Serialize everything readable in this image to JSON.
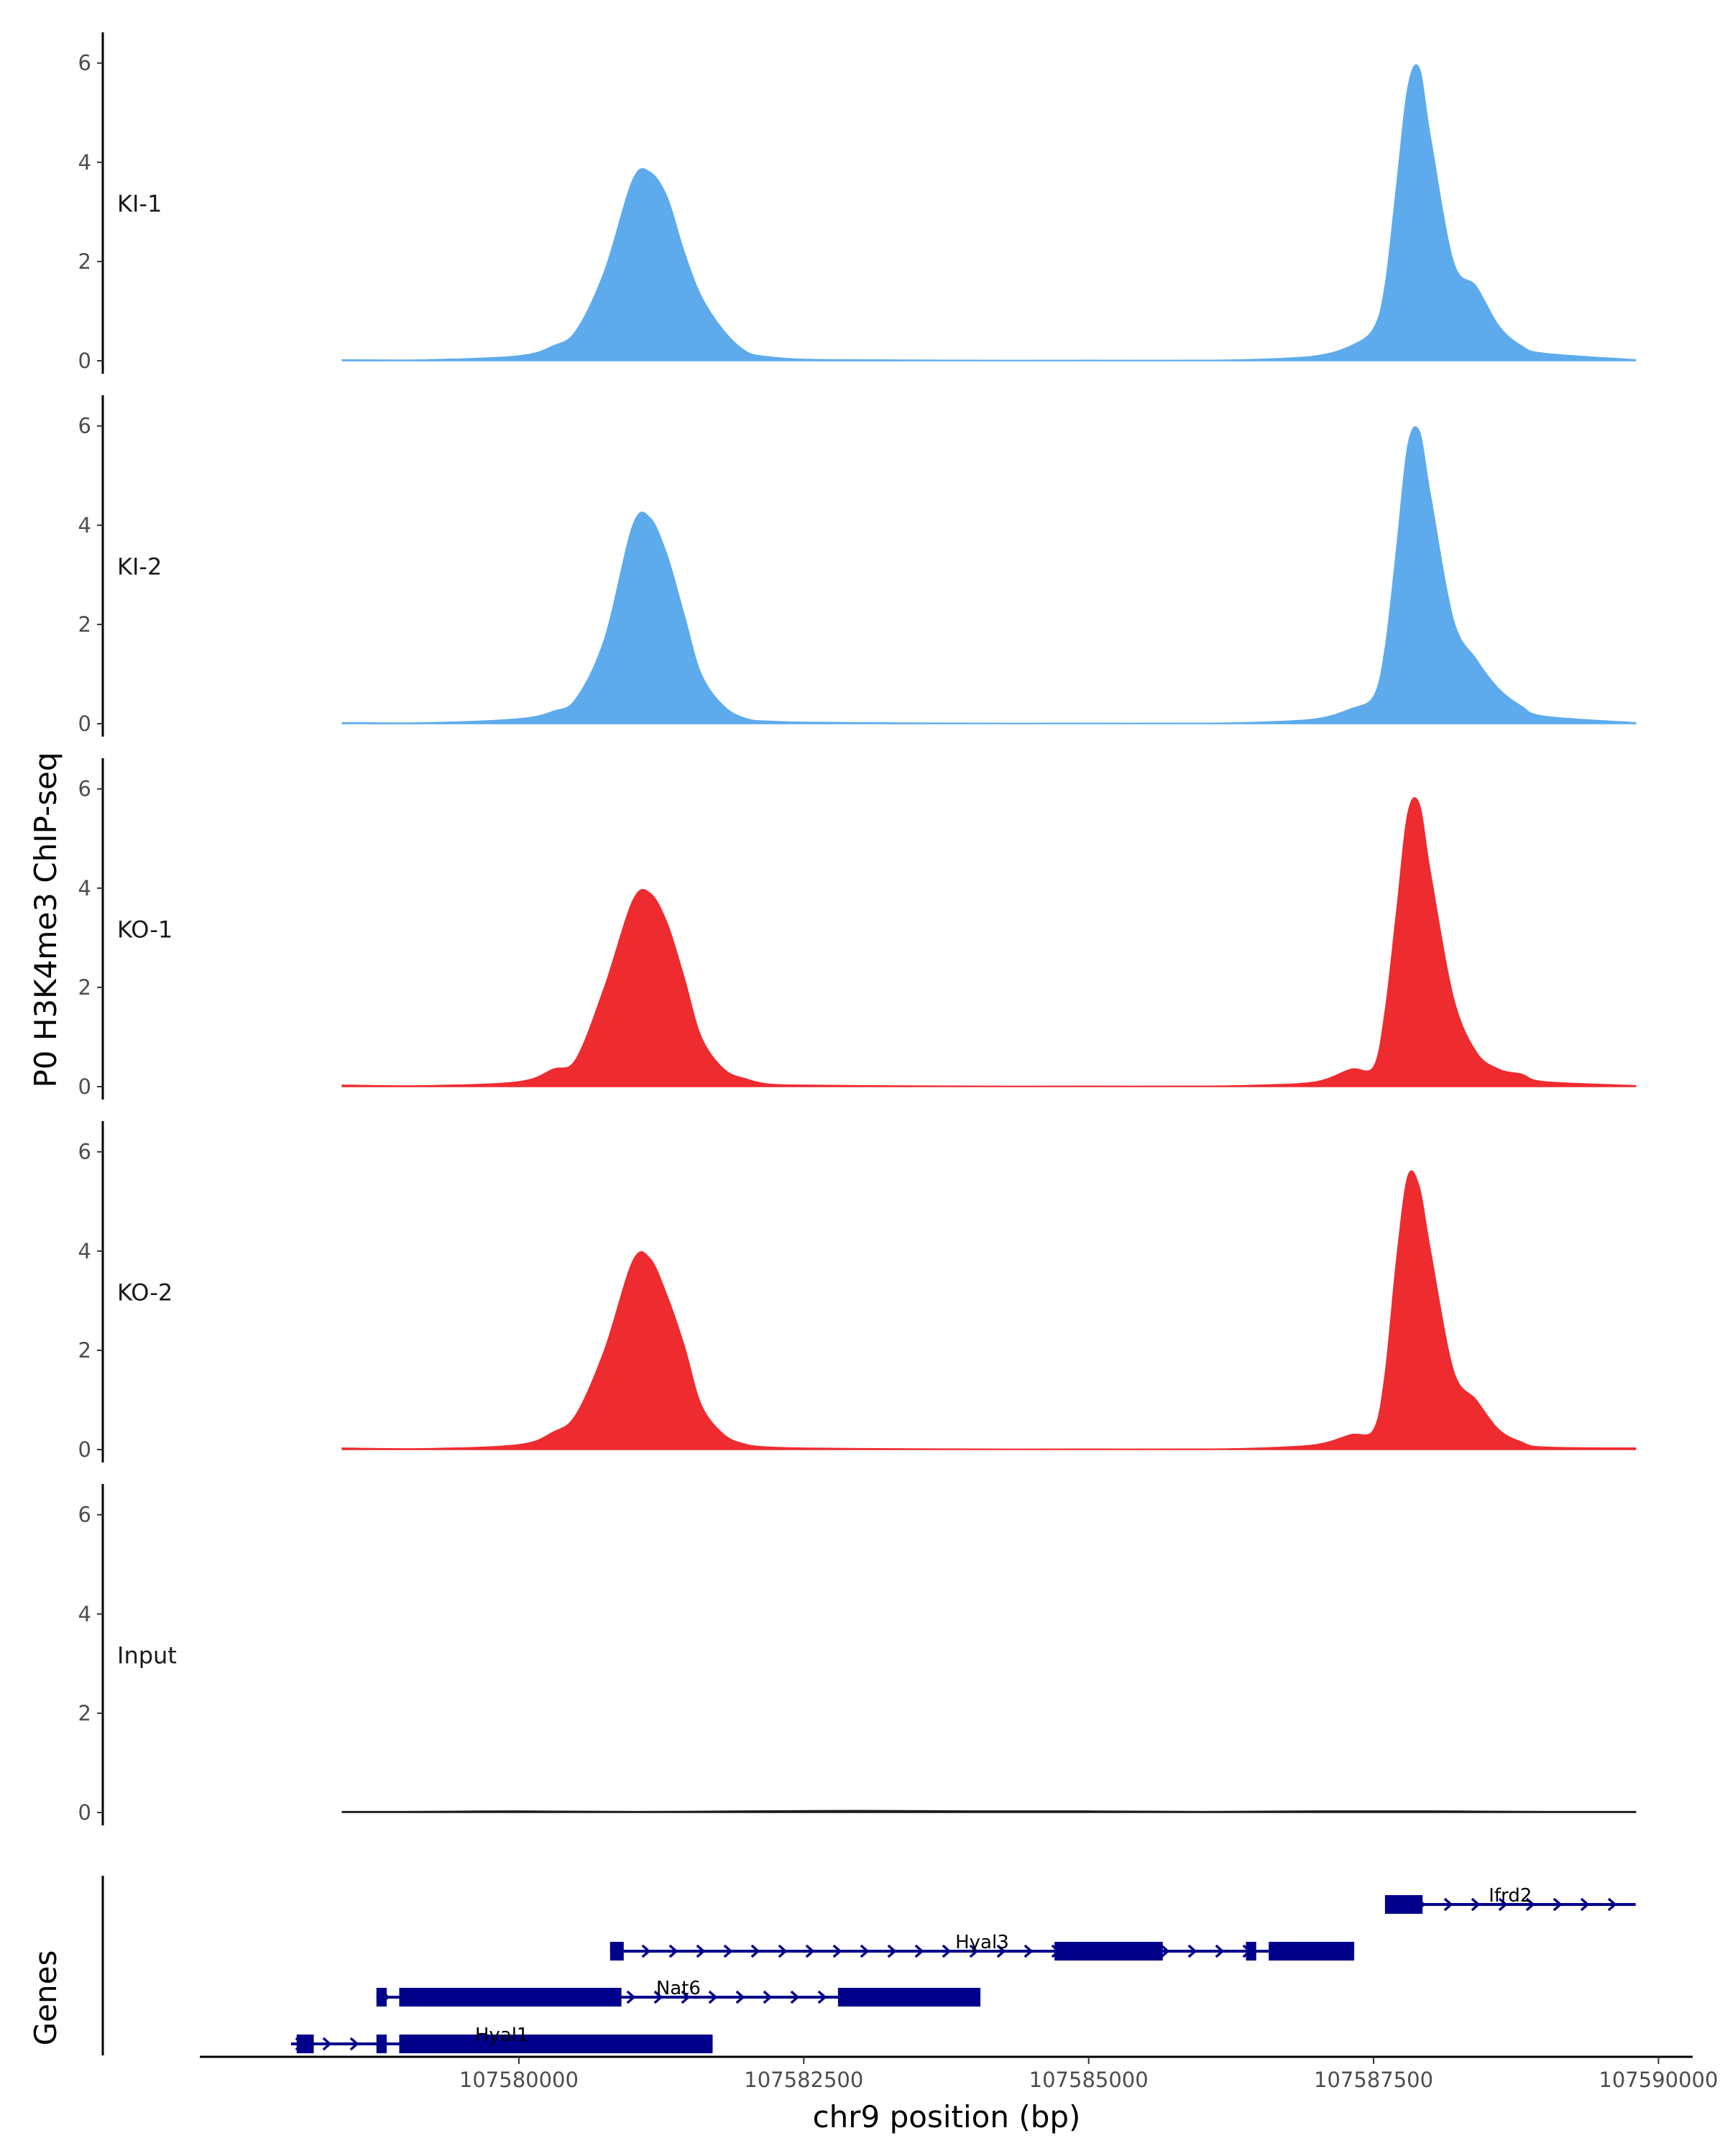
{
  "chart_data": {
    "type": "area",
    "title": "",
    "ylabel": "P0 H3K4me3 ChIP-seq",
    "xlabel": "chr9 position (bp)",
    "genes_label": "Genes",
    "xlim": [
      107577200,
      107590300
    ],
    "region": [
      107578450,
      107589800
    ],
    "ylim": [
      0,
      6.3
    ],
    "yticks": [
      0,
      2,
      4,
      6
    ],
    "xticks": [
      107580000,
      107582500,
      107585000,
      107587500,
      107590000
    ],
    "colors": {
      "KI": "#5dabec",
      "KO": "#ee2b2e",
      "Input": "#1a1a1a",
      "gene": "#00008b",
      "axis": "#000000"
    },
    "series": [
      {
        "name": "KI-1",
        "color": "#5dabec",
        "x": [
          107578450,
          107579200,
          107580000,
          107580300,
          107580500,
          107580750,
          107581000,
          107581150,
          107581300,
          107581450,
          107581600,
          107581800,
          107582000,
          107582200,
          107582500,
          107583000,
          107584000,
          107585000,
          107586000,
          107586500,
          107587000,
          107587300,
          107587500,
          107587600,
          107587700,
          107587800,
          107587900,
          107588000,
          107588200,
          107588400,
          107588600,
          107588800,
          107589000,
          107589800
        ],
        "y": [
          0.02,
          0.02,
          0.1,
          0.3,
          0.6,
          1.8,
          3.65,
          3.8,
          3.3,
          2.2,
          1.3,
          0.6,
          0.18,
          0.08,
          0.03,
          0.02,
          0.01,
          0.01,
          0.01,
          0.03,
          0.1,
          0.3,
          0.65,
          1.5,
          3.5,
          5.5,
          5.9,
          4.5,
          2.0,
          1.5,
          0.7,
          0.3,
          0.15,
          0.02
        ]
      },
      {
        "name": "KI-2",
        "color": "#5dabec",
        "x": [
          107578450,
          107579200,
          107580000,
          107580300,
          107580500,
          107580750,
          107581000,
          107581150,
          107581300,
          107581450,
          107581600,
          107581800,
          107582000,
          107582200,
          107582500,
          107583000,
          107584000,
          107585000,
          107586000,
          107586500,
          107587000,
          107587300,
          107587500,
          107587600,
          107587700,
          107587800,
          107587900,
          107588000,
          107588200,
          107588400,
          107588600,
          107588800,
          107589000,
          107589800
        ],
        "y": [
          0.02,
          0.02,
          0.1,
          0.25,
          0.5,
          1.7,
          4.0,
          4.15,
          3.4,
          2.2,
          1.0,
          0.35,
          0.1,
          0.05,
          0.03,
          0.02,
          0.01,
          0.01,
          0.01,
          0.03,
          0.1,
          0.3,
          0.55,
          1.5,
          3.5,
          5.6,
          5.9,
          4.6,
          2.1,
          1.3,
          0.7,
          0.35,
          0.15,
          0.02
        ]
      },
      {
        "name": "KO-1",
        "color": "#ee2b2e",
        "x": [
          107578450,
          107579200,
          107580000,
          107580300,
          107580500,
          107580750,
          107581000,
          107581150,
          107581300,
          107581450,
          107581600,
          107581800,
          107582000,
          107582200,
          107582500,
          107583000,
          107584000,
          107585000,
          107586000,
          107586500,
          107587000,
          107587300,
          107587500,
          107587600,
          107587700,
          107587800,
          107587900,
          107588000,
          107588200,
          107588400,
          107588600,
          107588800,
          107589000,
          107589800
        ],
        "y": [
          0.03,
          0.02,
          0.1,
          0.35,
          0.55,
          2.0,
          3.75,
          3.9,
          3.3,
          2.2,
          1.0,
          0.35,
          0.15,
          0.05,
          0.03,
          0.02,
          0.01,
          0.01,
          0.01,
          0.03,
          0.1,
          0.35,
          0.4,
          1.5,
          3.5,
          5.5,
          5.7,
          4.3,
          1.8,
          0.7,
          0.35,
          0.25,
          0.1,
          0.02
        ]
      },
      {
        "name": "KO-2",
        "color": "#ee2b2e",
        "x": [
          107578450,
          107579200,
          107580000,
          107580300,
          107580500,
          107580750,
          107581000,
          107581150,
          107581300,
          107581450,
          107581600,
          107581800,
          107582000,
          107582200,
          107582500,
          107583000,
          107584000,
          107585000,
          107586000,
          107586500,
          107587000,
          107587300,
          107587500,
          107587600,
          107587700,
          107587800,
          107587900,
          107588000,
          107588200,
          107588400,
          107588600,
          107588800,
          107589000,
          107589800
        ],
        "y": [
          0.03,
          0.02,
          0.1,
          0.35,
          0.7,
          2.0,
          3.8,
          3.85,
          3.1,
          2.1,
          0.9,
          0.3,
          0.1,
          0.05,
          0.03,
          0.02,
          0.01,
          0.01,
          0.01,
          0.03,
          0.1,
          0.3,
          0.4,
          1.5,
          3.8,
          5.5,
          5.3,
          4.0,
          1.6,
          1.0,
          0.4,
          0.15,
          0.05,
          0.03
        ]
      },
      {
        "name": "Input",
        "color": "#1a1a1a",
        "x": [
          107578450,
          107579000,
          107580000,
          107581000,
          107582000,
          107583000,
          107584000,
          107585000,
          107586000,
          107587000,
          107588000,
          107589000,
          107589800
        ],
        "y": [
          0.02,
          0.02,
          0.03,
          0.02,
          0.03,
          0.04,
          0.03,
          0.03,
          0.02,
          0.03,
          0.03,
          0.02,
          0.02
        ]
      }
    ],
    "genes": [
      {
        "name": "Ifrd2",
        "row": 1,
        "start": 107587600,
        "end": 107589800,
        "exons": [
          [
            107587600,
            107587930
          ]
        ]
      },
      {
        "name": "Hyal3",
        "row": 2,
        "start": 107580800,
        "end": 107587330,
        "exons": [
          [
            107580800,
            107580920
          ],
          [
            107584700,
            107585650
          ],
          [
            107586380,
            107586470
          ],
          [
            107586580,
            107587330
          ]
        ]
      },
      {
        "name": "Nat6",
        "row": 3,
        "start": 107578750,
        "end": 107584050,
        "exons": [
          [
            107578750,
            107578840
          ],
          [
            107578950,
            107580900
          ],
          [
            107582800,
            107584050
          ]
        ]
      },
      {
        "name": "Hyal1",
        "row": 4,
        "start": 107578000,
        "end": 107581700,
        "exons": [
          [
            107578050,
            107578200
          ],
          [
            107578750,
            107578840
          ],
          [
            107578950,
            107581700
          ]
        ]
      }
    ]
  }
}
